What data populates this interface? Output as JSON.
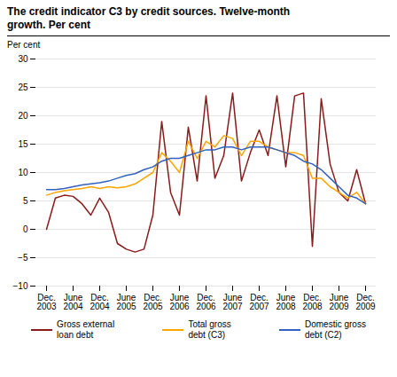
{
  "chart_data": {
    "type": "line",
    "title": "The credit indicator C3 by credit sources. Twelve-month\ngrowth. Per cent",
    "y_label": "Per cent",
    "categories": [
      "Dec.\n2003",
      null,
      null,
      "June\n2004",
      null,
      null,
      "Dec.\n2004",
      null,
      null,
      "June\n2005",
      null,
      null,
      "Dec.\n2005",
      null,
      null,
      "June\n2006",
      null,
      null,
      "Dec.\n2006",
      null,
      null,
      "June\n2007",
      null,
      null,
      "Dec.\n2007",
      null,
      null,
      "June\n2008",
      null,
      null,
      "Dec.\n2008",
      null,
      null,
      "June\n2009",
      null,
      null,
      "Dec.\n2009"
    ],
    "series": [
      {
        "name": "Gross external\nloan debt",
        "color": "#8B1A1A",
        "values": [
          0.0,
          5.5,
          6.0,
          5.8,
          4.5,
          2.5,
          5.5,
          3.0,
          -2.5,
          -3.5,
          -4.0,
          -3.5,
          2.5,
          19.0,
          6.5,
          2.5,
          18.0,
          8.5,
          23.5,
          9.0,
          13.0,
          24.0,
          8.5,
          13.5,
          17.5,
          13.0,
          23.5,
          11.0,
          23.5,
          24.0,
          -3.0,
          23.0,
          11.5,
          6.5,
          5.0,
          10.5,
          4.5
        ]
      },
      {
        "name": "Total gross\ndebt (C3)",
        "color": "#FFA500",
        "values": [
          6.0,
          6.5,
          6.8,
          7.0,
          7.2,
          7.5,
          7.2,
          7.5,
          7.3,
          7.5,
          8.0,
          9.0,
          10.0,
          13.5,
          12.0,
          10.0,
          15.5,
          12.5,
          15.5,
          14.5,
          16.5,
          16.0,
          13.0,
          15.5,
          15.5,
          14.5,
          14.0,
          13.5,
          13.5,
          13.0,
          9.0,
          9.0,
          7.5,
          6.5,
          5.5,
          6.5,
          4.5
        ]
      },
      {
        "name": "Domestic gross\ndebt (C2)",
        "color": "#3060C0",
        "values": [
          7.0,
          7.0,
          7.2,
          7.5,
          7.8,
          8.0,
          8.2,
          8.5,
          9.0,
          9.5,
          9.8,
          10.5,
          11.0,
          12.0,
          12.5,
          12.5,
          13.0,
          13.5,
          14.0,
          14.0,
          14.5,
          14.5,
          14.0,
          14.5,
          14.5,
          14.5,
          14.0,
          13.5,
          13.0,
          12.0,
          11.5,
          10.5,
          9.0,
          7.5,
          6.0,
          5.5,
          4.5
        ]
      }
    ],
    "ylim": [
      -10,
      30
    ],
    "yticks": [
      -10,
      -5,
      0,
      5,
      10,
      15,
      20,
      25,
      30
    ],
    "grid": true,
    "legend": "bottom"
  }
}
